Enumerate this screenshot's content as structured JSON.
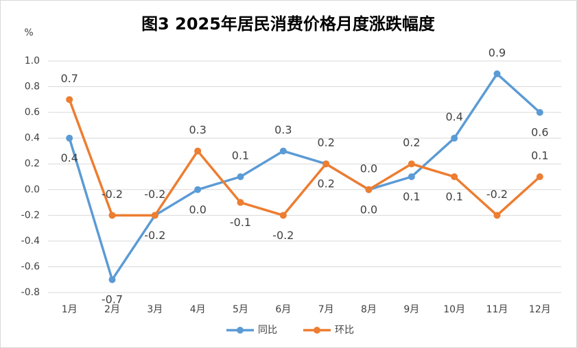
{
  "chart_data": {
    "type": "line",
    "title": "图3 2025年居民消费价格月度涨跌幅度",
    "y_label": "%",
    "categories": [
      "1月",
      "2月",
      "3月",
      "4月",
      "5月",
      "6月",
      "7月",
      "8月",
      "9月",
      "10月",
      "11月",
      "12月"
    ],
    "series": [
      {
        "name": "同比",
        "color": "#5b9bd5",
        "values": [
          0.4,
          -0.7,
          -0.2,
          0,
          0.1,
          0.3,
          0.2,
          0,
          0.1,
          0.4,
          0.9,
          0.6
        ],
        "value_labels": [
          "0.4",
          "-0.7",
          "-0.2",
          "0.0",
          "0.1",
          "0.3",
          "0.2",
          "0.0",
          "0.1",
          "0.4",
          "0.9",
          "0.6"
        ]
      },
      {
        "name": "环比",
        "color": "#ed7d31",
        "values": [
          0.7,
          -0.2,
          -0.2,
          0.3,
          -0.1,
          -0.2,
          0.2,
          0,
          0.2,
          0.1,
          -0.2,
          0.1
        ],
        "value_labels": [
          "0.7",
          "-0.2",
          "-0.2",
          "0.3",
          "-0.1",
          "-0.2",
          "0.2",
          "0.0",
          "0.2",
          "0.1",
          "-0.2",
          "0.1"
        ]
      }
    ],
    "ylim": [
      -0.8,
      1.0
    ],
    "yticks": [
      -0.8,
      -0.6,
      -0.4,
      -0.2,
      {
        "value": 0,
        "label": "0.0"
      },
      0.2,
      0.4,
      0.6,
      0.8,
      {
        "value": 1.0,
        "label": "1.0"
      }
    ],
    "grid": true,
    "legend": "bottom"
  }
}
